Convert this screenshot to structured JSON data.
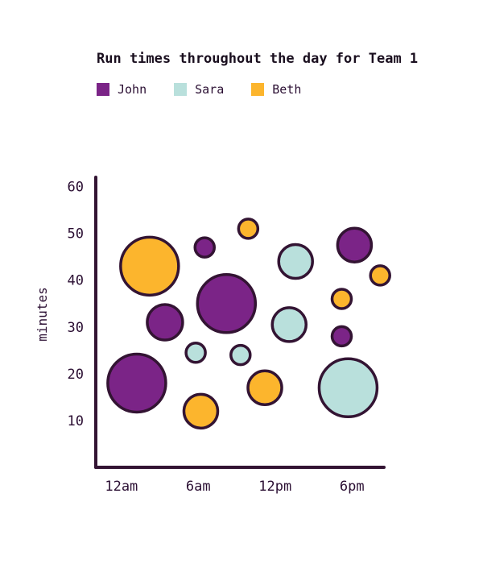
{
  "colors": {
    "John": "#7b2487",
    "Sara": "#b9e0dc",
    "Beth": "#fcb52d",
    "outline": "#331433",
    "axis": "#331433"
  },
  "chart_data": {
    "type": "scatter",
    "title": "Run times throughout the day for Team 1",
    "xlabel": "",
    "ylabel": "minutes",
    "x_ticks": [
      {
        "label": "12am",
        "value": 0
      },
      {
        "label": "6am",
        "value": 6
      },
      {
        "label": "12pm",
        "value": 12
      },
      {
        "label": "6pm",
        "value": 18
      }
    ],
    "y_ticks": [
      60,
      50,
      40,
      30,
      20,
      10
    ],
    "xlim": [
      -2,
      20.5
    ],
    "ylim": [
      0,
      62
    ],
    "legend_position": "top-left",
    "series": [
      {
        "name": "John",
        "points": [
          {
            "x": 1.2,
            "y": 18,
            "size": 36
          },
          {
            "x": 3.4,
            "y": 31,
            "size": 22
          },
          {
            "x": 6.5,
            "y": 47,
            "size": 12
          },
          {
            "x": 8.2,
            "y": 35,
            "size": 36
          },
          {
            "x": 17.2,
            "y": 28,
            "size": 12
          },
          {
            "x": 18.2,
            "y": 47.5,
            "size": 21
          }
        ]
      },
      {
        "name": "Sara",
        "points": [
          {
            "x": 5.8,
            "y": 24.5,
            "size": 12
          },
          {
            "x": 9.3,
            "y": 24,
            "size": 12
          },
          {
            "x": 13.1,
            "y": 30.5,
            "size": 21
          },
          {
            "x": 13.6,
            "y": 44,
            "size": 21
          },
          {
            "x": 17.7,
            "y": 17,
            "size": 36
          }
        ]
      },
      {
        "name": "Beth",
        "points": [
          {
            "x": 2.2,
            "y": 43,
            "size": 36
          },
          {
            "x": 6.2,
            "y": 12,
            "size": 21
          },
          {
            "x": 9.9,
            "y": 51,
            "size": 12
          },
          {
            "x": 11.2,
            "y": 17,
            "size": 21
          },
          {
            "x": 17.2,
            "y": 36,
            "size": 12
          },
          {
            "x": 20.2,
            "y": 41,
            "size": 12
          }
        ]
      }
    ]
  }
}
